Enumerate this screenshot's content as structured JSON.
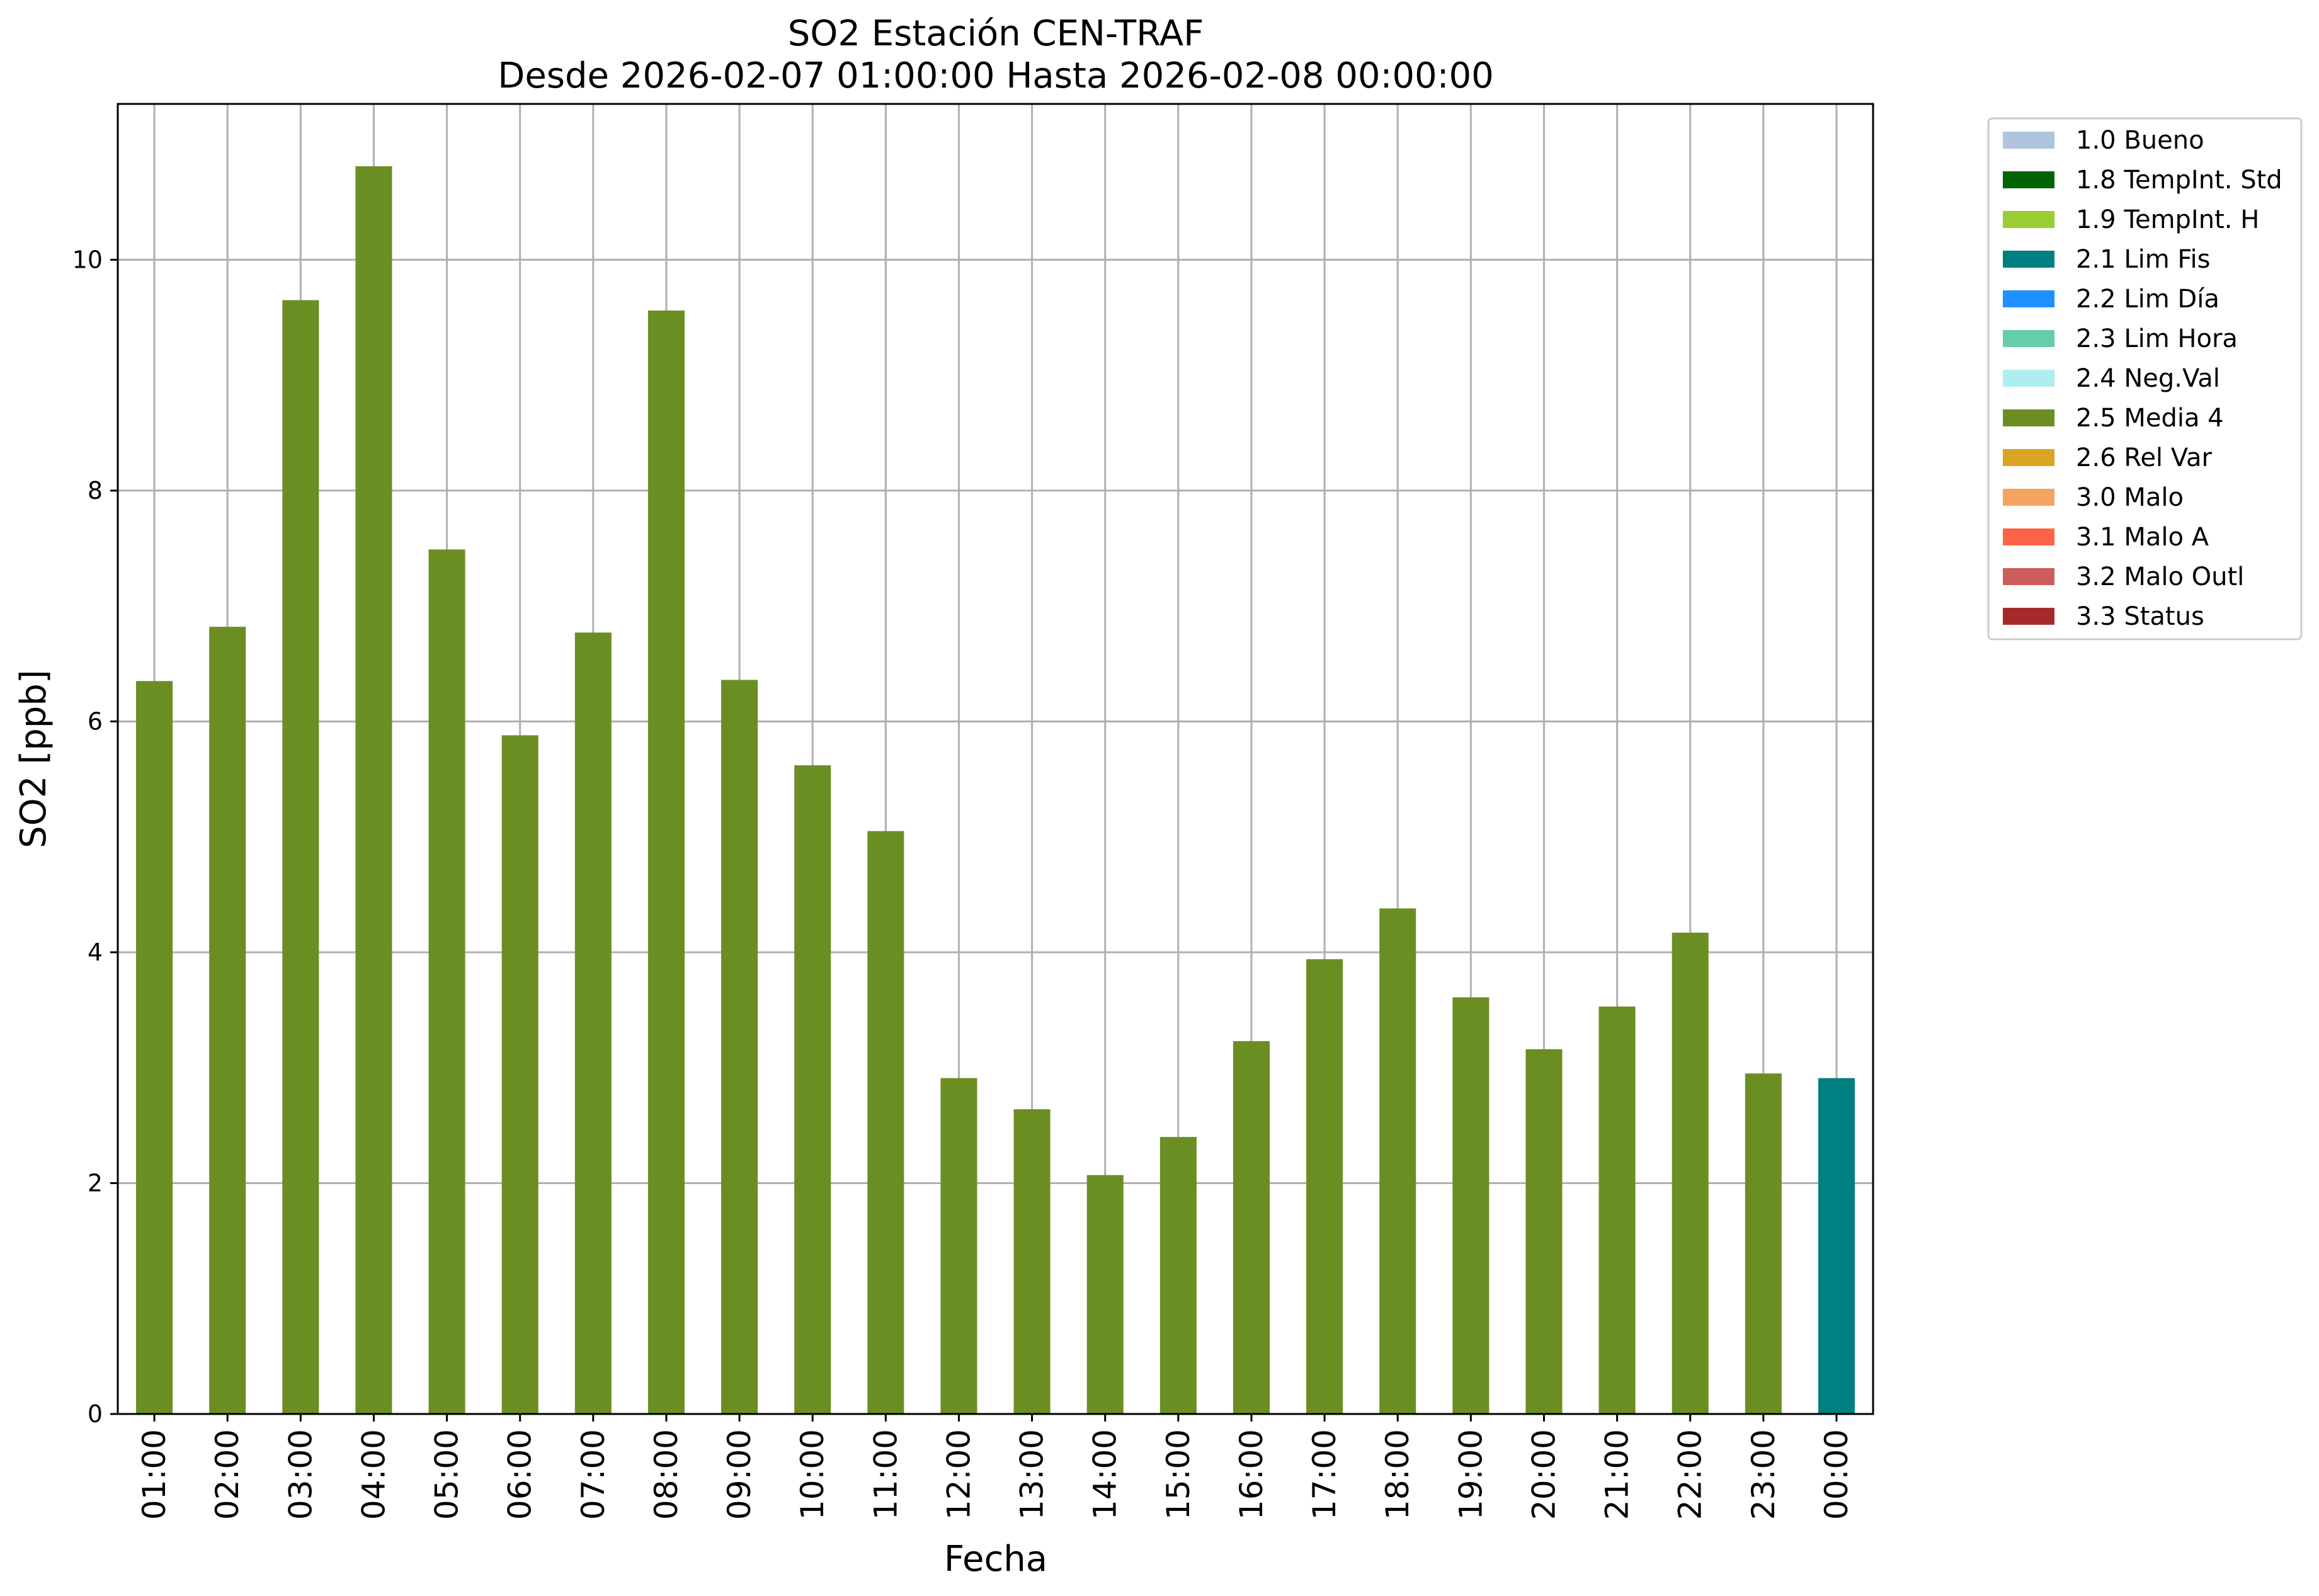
{
  "chart_data": {
    "type": "bar",
    "title": "SO2 Estación CEN-TRAF",
    "subtitle": "Desde 2026-02-07 01:00:00 Hasta 2026-02-08 00:00:00",
    "xlabel": "Fecha",
    "ylabel": "SO2 [ppb]",
    "ylim": [
      0,
      11.35
    ],
    "yticks": [
      "0",
      "2",
      "4",
      "6",
      "8",
      "10"
    ],
    "grid": true,
    "legend_position": "outside top-right",
    "categories": [
      "01:00",
      "02:00",
      "03:00",
      "04:00",
      "05:00",
      "06:00",
      "07:00",
      "08:00",
      "09:00",
      "10:00",
      "11:00",
      "12:00",
      "13:00",
      "14:00",
      "15:00",
      "16:00",
      "17:00",
      "18:00",
      "19:00",
      "20:00",
      "21:00",
      "22:00",
      "23:00",
      "00:00"
    ],
    "values": [
      6.35,
      6.82,
      9.65,
      10.81,
      7.49,
      5.88,
      6.77,
      9.56,
      6.36,
      5.62,
      5.05,
      2.91,
      2.64,
      2.07,
      2.4,
      3.23,
      3.94,
      4.38,
      3.61,
      3.16,
      3.53,
      4.17,
      2.95,
      2.91
    ],
    "bar_categories": [
      "2.5 Media 4",
      "2.5 Media 4",
      "2.5 Media 4",
      "2.5 Media 4",
      "2.5 Media 4",
      "2.5 Media 4",
      "2.5 Media 4",
      "2.5 Media 4",
      "2.5 Media 4",
      "2.5 Media 4",
      "2.5 Media 4",
      "2.5 Media 4",
      "2.5 Media 4",
      "2.5 Media 4",
      "2.5 Media 4",
      "2.5 Media 4",
      "2.5 Media 4",
      "2.5 Media 4",
      "2.5 Media 4",
      "2.5 Media 4",
      "2.5 Media 4",
      "2.5 Media 4",
      "2.5 Media 4",
      "2.1 Lim Fis"
    ],
    "legend": [
      {
        "label": "1.0 Bueno",
        "color": "#b0c4de"
      },
      {
        "label": "1.8 TempInt. Std",
        "color": "#006400"
      },
      {
        "label": "1.9 TempInt. H",
        "color": "#9acd32"
      },
      {
        "label": "2.1 Lim Fis",
        "color": "#008080"
      },
      {
        "label": "2.2 Lim Día",
        "color": "#1e90ff"
      },
      {
        "label": "2.3 Lim Hora",
        "color": "#66cdaa"
      },
      {
        "label": "2.4 Neg.Val",
        "color": "#afeeee"
      },
      {
        "label": "2.5 Media 4",
        "color": "#6b8e23"
      },
      {
        "label": "2.6 Rel Var",
        "color": "#daa520"
      },
      {
        "label": "3.0 Malo",
        "color": "#f4a460"
      },
      {
        "label": "3.1 Malo A",
        "color": "#ff6347"
      },
      {
        "label": "3.2 Malo Outl",
        "color": "#cd5c5c"
      },
      {
        "label": "3.3 Status",
        "color": "#a52a2a"
      }
    ]
  }
}
